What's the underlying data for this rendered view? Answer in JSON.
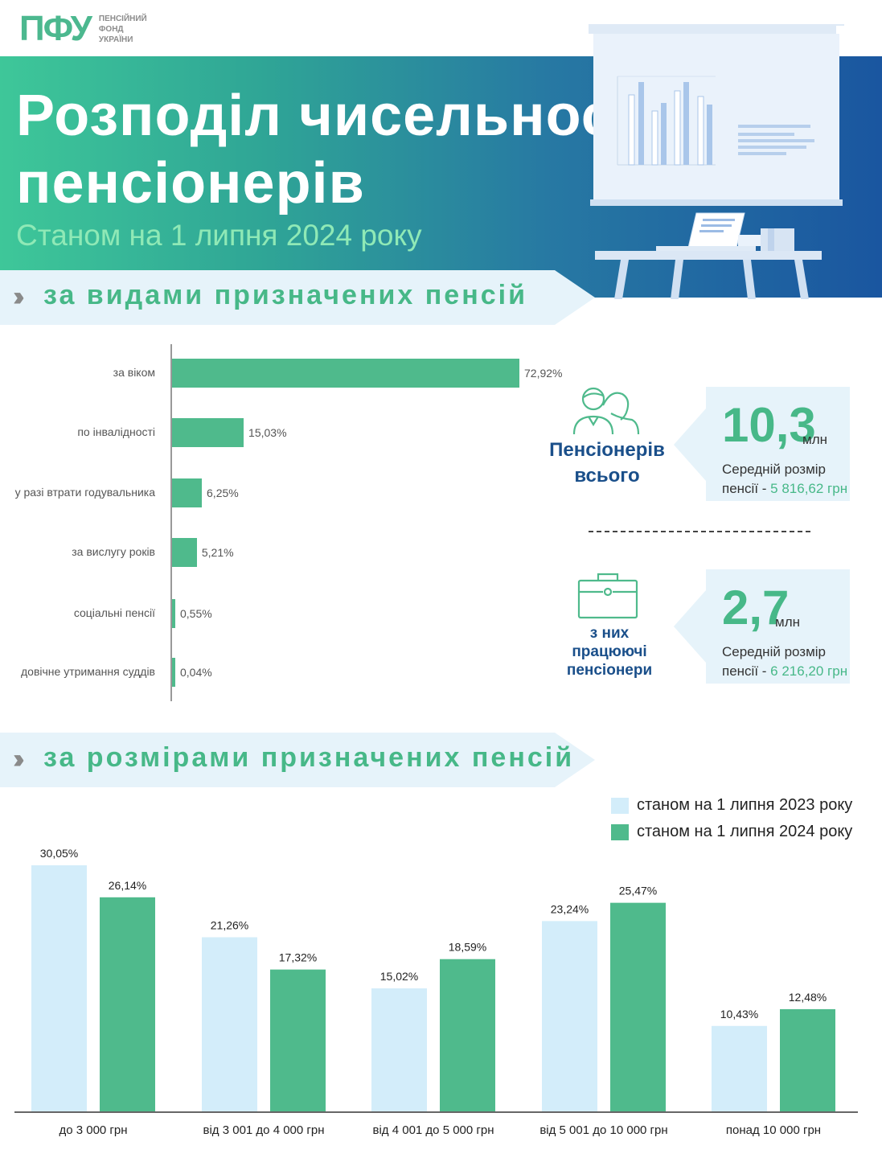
{
  "logo": {
    "mark": "ПФУ",
    "line1": "ПЕНСІЙНИЙ",
    "line2": "ФОНД",
    "line3": "УКРАЇНИ"
  },
  "hero": {
    "title_line1": "Розподіл чисельності",
    "title_line2": "пенсіонерів",
    "subtitle": "Станом на 1 липня 2024 року"
  },
  "section1": {
    "chevron": "››",
    "label": "за видами призначених пенсій"
  },
  "section2": {
    "chevron": "››",
    "label": "за розмірами призначених пенсій"
  },
  "stats": {
    "total": {
      "caption_line1": "Пенсіонерів",
      "caption_line2": "всього",
      "value": "10,3",
      "unit": "млн",
      "desc_line1": "Середній розмір",
      "desc_prefix": "пенсії - ",
      "avg": "5 816,62 грн"
    },
    "working": {
      "caption_line1": "з них",
      "caption_line2": "працюючі",
      "caption_line3": "пенсіонери",
      "value": "2,7",
      "unit": "млн",
      "desc_line1": "Середній розмір",
      "desc_prefix": "пенсії - ",
      "avg": "6 216,20 грн"
    }
  },
  "colors": {
    "green": "#4fba8c",
    "light_blue": "#d3edfa",
    "navy": "#1a4f8a",
    "panel": "#e6f3fa"
  },
  "chart_data": [
    {
      "type": "bar",
      "orientation": "horizontal",
      "categories": [
        "за віком",
        "по інвалідності",
        "у разі втрати годувальника",
        "за вислугу років",
        "соціальні пенсії",
        "довічне утримання суддів"
      ],
      "values": [
        72.92,
        15.03,
        6.25,
        5.21,
        0.55,
        0.04
      ],
      "labels": [
        "72,92%",
        "15,03%",
        "6,25%",
        "5,21%",
        "0,55%",
        "0,04%"
      ],
      "unit": "%"
    },
    {
      "type": "bar",
      "categories": [
        "до 3 000 грн",
        "від 3 001 до 4 000 грн",
        "від 4 001 до 5 000 грн",
        "від 5 001 до 10 000 грн",
        "понад 10 000 грн"
      ],
      "series": [
        {
          "name": "станом на 1 липня 2023 року",
          "color": "#d3edfa",
          "values": [
            30.05,
            21.26,
            15.02,
            23.24,
            10.43
          ],
          "labels": [
            "30,05%",
            "21,26%",
            "15,02%",
            "23,24%",
            "10,43%"
          ]
        },
        {
          "name": "станом на 1 липня 2024 року",
          "color": "#4fba8c",
          "values": [
            26.14,
            17.32,
            18.59,
            25.47,
            12.48
          ],
          "labels": [
            "26,14%",
            "17,32%",
            "18,59%",
            "25,47%",
            "12,48%"
          ]
        }
      ],
      "legend": "top-right"
    }
  ]
}
